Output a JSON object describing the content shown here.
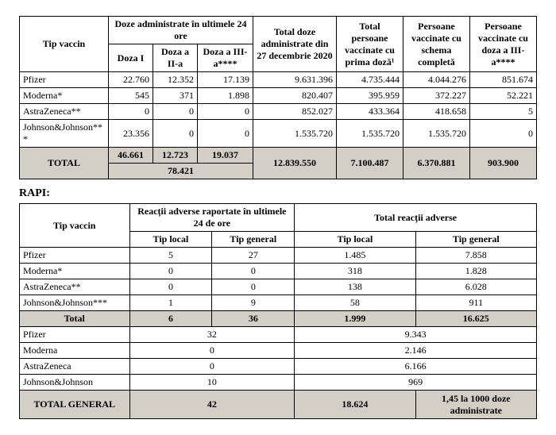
{
  "table1": {
    "headers": {
      "tip_vaccin": "Tip vaccin",
      "doze_24h": "Doze administrate în ultimele 24 ore",
      "doza1": "Doza I",
      "doza2": "Doza a II-a",
      "doza3": "Doza a III-a****",
      "total_doze": "Total doze administrate din 27 decembrie 2020",
      "total_prima_doza": "Total persoane vaccinate cu prima doză¹",
      "schema_completa": "Persoane vaccinate cu schema completă",
      "doza3_pers": "Persoane vaccinate cu doza a III-a****"
    },
    "rows": [
      {
        "name": "Pfizer",
        "d1": "22.760",
        "d2": "12.352",
        "d3": "17.139",
        "total": "9.631.396",
        "prima": "4.735.444",
        "schema": "4.044.276",
        "d3p": "851.674"
      },
      {
        "name": "Moderna*",
        "d1": "545",
        "d2": "371",
        "d3": "1.898",
        "total": "820.407",
        "prima": "395.959",
        "schema": "372.227",
        "d3p": "52.221"
      },
      {
        "name": "AstraZeneca**",
        "d1": "0",
        "d2": "0",
        "d3": "0",
        "total": "852.027",
        "prima": "433.364",
        "schema": "418.658",
        "d3p": "5"
      },
      {
        "name": "Johnson&Johnson***",
        "d1": "23.356",
        "d2": "0",
        "d3": "0",
        "total": "1.535.720",
        "prima": "1.535.720",
        "schema": "1.535.720",
        "d3p": "0"
      }
    ],
    "total": {
      "label": "TOTAL",
      "d1": "46.661",
      "d2": "12.723",
      "d3": "19.037",
      "sum24": "78.421",
      "total": "12.839.550",
      "prima": "7.100.487",
      "schema": "6.370.881",
      "d3p": "903.900"
    }
  },
  "section_label": "RAPI:",
  "table2": {
    "headers": {
      "tip_vaccin": "Tip vaccin",
      "reactii24": "Reacții adverse raportate în ultimele 24 de ore",
      "total_reactii": "Total reacții adverse",
      "tip_local": "Tip local",
      "tip_general": "Tip general"
    },
    "rows": [
      {
        "name": "Pfizer",
        "l24": "5",
        "g24": "27",
        "lt": "1.485",
        "gt": "7.858"
      },
      {
        "name": "Moderna*",
        "l24": "0",
        "g24": "0",
        "lt": "318",
        "gt": "1.828"
      },
      {
        "name": "AstraZeneca**",
        "l24": "0",
        "g24": "0",
        "lt": "138",
        "gt": "6.028"
      },
      {
        "name": "Johnson&Johnson***",
        "l24": "1",
        "g24": "9",
        "lt": "58",
        "gt": "911"
      }
    ],
    "subtotal": {
      "label": "Total",
      "l24": "6",
      "g24": "36",
      "lt": "1.999",
      "gt": "16.625"
    },
    "merged_rows": [
      {
        "name": "Pfizer",
        "v24": "32",
        "vt": "9.343"
      },
      {
        "name": "Moderna",
        "v24": "0",
        "vt": "2.146"
      },
      {
        "name": "AstraZeneca",
        "v24": "0",
        "vt": "6.166"
      },
      {
        "name": "Johnson&Johnson",
        "v24": "10",
        "vt": "969"
      }
    ],
    "grand_total": {
      "label": "TOTAL GENERAL",
      "v24": "42",
      "vt": "18.624",
      "rate": "1,45 la 1000 doze administrate"
    }
  }
}
